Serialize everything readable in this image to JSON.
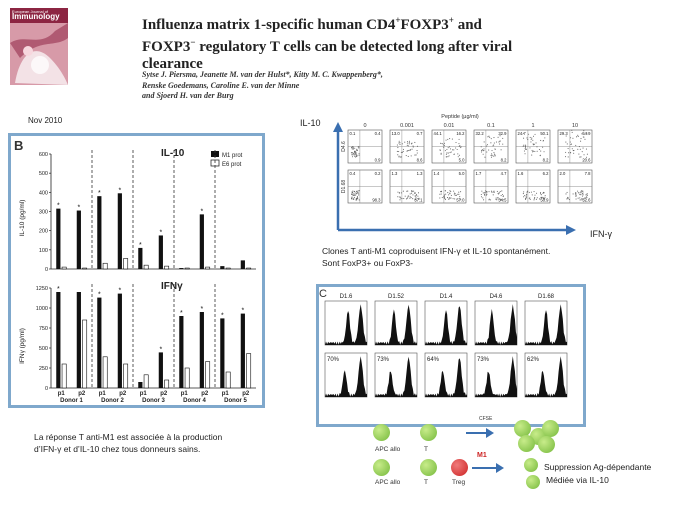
{
  "paper": {
    "title_line1": "Influenza matrix 1-specific human CD4",
    "title_line1_sup": "+",
    "title_line1_b": "FOXP3",
    "title_line1_b_sup": "+",
    "title_line1_c": " and",
    "title_line2": "FOXP3",
    "title_line2_sup": "−",
    "title_line2_b": " regulatory T cells can be detected long after viral",
    "title_line3": "clearance",
    "authors_line1": "Sytse J. Piersma, Jeanette M. van der Hulst*, Kitty M. C. Kwappenberg*,",
    "authors_line2": "Renske Goedemans, Caroline E. van der Minne",
    "authors_line3": "and Sjoerd H. van der Burg"
  },
  "journal_cover": {
    "publisher": "European Journal of",
    "name": "Immunology"
  },
  "date": "Nov 2010",
  "panel_b": {
    "label": "B",
    "top_title": "IL-10",
    "bottom_title": "IFNγ",
    "legend": [
      "M1 prot",
      "E6 prot"
    ],
    "top_ylabel": "IL-10 (pg/ml)",
    "bottom_ylabel": "IFNγ (pg/ml)",
    "top_yticks": [
      "0",
      "100",
      "200",
      "300",
      "400",
      "500",
      "600"
    ],
    "bottom_yticks": [
      "0",
      "250",
      "500",
      "750",
      "1000",
      "1250"
    ],
    "p_labels": [
      "p1",
      "p2",
      "p1",
      "p2",
      "p1",
      "p2",
      "p1",
      "p2",
      "p1",
      "p2"
    ],
    "donors": [
      "Donor 1",
      "Donor 2",
      "Donor 3",
      "Donor 4",
      "Donor 5"
    ]
  },
  "chart_data": [
    {
      "type": "bar",
      "title": "IL-10",
      "ylabel": "IL-10 (pg/ml)",
      "ylim": [
        0,
        600
      ],
      "categories": [
        "Donor 1 p1",
        "Donor 1 p2",
        "Donor 2 p1",
        "Donor 2 p2",
        "Donor 3 p1",
        "Donor 3 p2",
        "Donor 4 p1",
        "Donor 4 p2",
        "Donor 5 p1",
        "Donor 5 p2"
      ],
      "series": [
        {
          "name": "M1 prot",
          "values": [
            315,
            305,
            380,
            395,
            110,
            175,
            5,
            285,
            15,
            45
          ]
        },
        {
          "name": "E6 prot",
          "values": [
            10,
            5,
            30,
            55,
            20,
            15,
            5,
            10,
            5,
            5
          ]
        }
      ],
      "significant_markers": [
        true,
        true,
        true,
        true,
        true,
        true,
        false,
        true,
        false,
        false
      ]
    },
    {
      "type": "bar",
      "title": "IFNγ",
      "ylabel": "IFNγ (pg/ml)",
      "ylim": [
        0,
        1250
      ],
      "categories": [
        "Donor 1 p1",
        "Donor 1 p2",
        "Donor 2 p1",
        "Donor 2 p2",
        "Donor 3 p1",
        "Donor 3 p2",
        "Donor 4 p1",
        "Donor 4 p2",
        "Donor 5 p1",
        "Donor 5 p2"
      ],
      "series": [
        {
          "name": "M1 prot",
          "values": [
            1200,
            1200,
            1130,
            1180,
            75,
            445,
            900,
            950,
            870,
            930
          ]
        },
        {
          "name": "E6 prot",
          "values": [
            300,
            850,
            390,
            300,
            165,
            100,
            250,
            330,
            200,
            430
          ]
        }
      ],
      "significant_markers": [
        true,
        false,
        true,
        true,
        false,
        true,
        true,
        true,
        true,
        true
      ]
    },
    {
      "type": "scatter",
      "title": "Peptide (µg/ml)",
      "x_categories": [
        "0",
        "0.001",
        "0.01",
        "0.1",
        "1",
        "10"
      ],
      "rows": [
        {
          "name": "D4.6",
          "quadrant_values": [
            [
              "0.1",
              "0.4"
            ],
            [
              "13.0",
              "0.7"
            ],
            [
              "44.1",
              "16.2"
            ],
            [
              "32.2",
              "32.9"
            ],
            [
              "24.7",
              "50.1"
            ],
            [
              "29.3",
              "54.9"
            ]
          ]
        },
        {
          "name": "D1.68",
          "quadrant_values": [
            [
              "0.4",
              "0.2"
            ],
            [
              "1.3",
              "1.3"
            ],
            [
              "1.4",
              "5.0"
            ],
            [
              "1.7",
              "4.7"
            ],
            [
              "1.6",
              "6.2"
            ],
            [
              "2.0",
              "7.8"
            ]
          ]
        }
      ]
    }
  ],
  "flow_panel": {
    "ylabel": "IL-10",
    "xlabel": "IFN-γ",
    "peptide_label": "Peptide (µg/ml)",
    "concentrations": [
      "0",
      "0.001",
      "0.01",
      "0.1",
      "1",
      "10"
    ],
    "row_labels": [
      "D4.6",
      "D1.68"
    ],
    "top_left_values": [
      "0.1",
      "13.0",
      "44.1",
      "32.2",
      "24.7",
      "29.3"
    ],
    "top_right_values": [
      "0.4",
      "0.7",
      "16.2",
      "32.9",
      "50.1",
      "54.9"
    ],
    "bottom_left_values": [
      "0.4",
      "1.3",
      "1.4",
      "1.7",
      "1.6",
      "2.0"
    ],
    "bottom_right_values": [
      "0.2",
      "1.3",
      "5.0",
      "4.7",
      "6.2",
      "7.8"
    ],
    "br_values_top": [
      "0.9",
      "8.6",
      "5.0",
      "8.2",
      "8.2",
      "20.6"
    ],
    "br_values_bottom": [
      "98.3",
      "37.1",
      "57.0",
      "54.5",
      "58.9",
      "52.6"
    ]
  },
  "caption_flow_line1": "Clones T anti-M1 coproduisent IFN-γ et IL-10 spontanément.",
  "caption_flow_line2": "Sont FoxP3+ ou FoxP3-",
  "panel_c": {
    "label": "C",
    "clones": [
      "D1.6",
      "D1.52",
      "D1.4",
      "D4.6",
      "D1.68"
    ],
    "percentages": [
      "70%",
      "73%",
      "64%",
      "73%",
      "62%"
    ],
    "xlabel": "CFSE"
  },
  "caption_b_line1": "La réponse T anti-M1 est associée à la production",
  "caption_b_line2": "d’IFN-γ et d’IL-10 chez tous donneurs sains.",
  "schema": {
    "row1_labels": [
      "APC allo",
      "T"
    ],
    "row2_labels": [
      "APC allo",
      "T",
      "Treg"
    ],
    "inhibitor_label": "M1",
    "result_line1": "Suppression Ag-dépendante",
    "result_line2": "Médiée via IL-10",
    "colors": {
      "apc": "#7cc14a",
      "treg": "#d62b2b",
      "arrow": "#3a6fb0"
    }
  },
  "colors": {
    "panel_border": "#7fa8cc",
    "axis_blue": "#3a6fb0",
    "journal_red": "#8c2542"
  }
}
